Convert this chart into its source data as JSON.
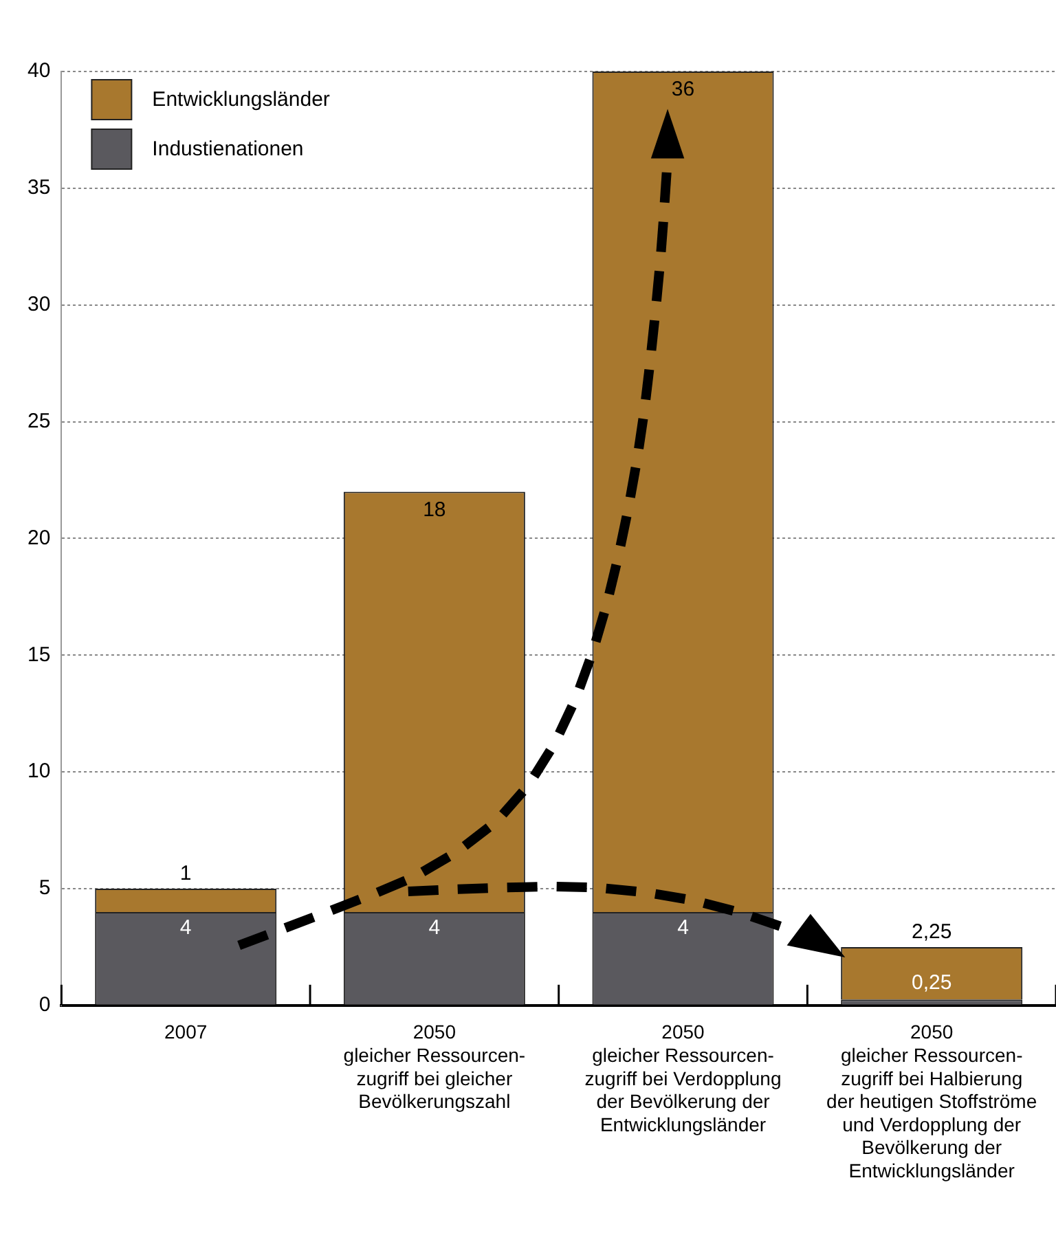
{
  "chart_data": {
    "type": "bar",
    "stacked": true,
    "categories": [
      "2007",
      "2050\ngleicher Ressourcen-\nzugriff bei gleicher\nBevölkerungszahl",
      "2050\ngleicher Ressourcen-\nzugriff bei Verdopplung\nder Bevölkerung der\nEntwicklungsländer",
      "2050\ngleicher Ressourcen-\nzugriff bei Halbierung\nder heutigen Stoffströme\nund Verdopplung der\nBevölkerung der\nEntwicklungsländer"
    ],
    "series": [
      {
        "name": "Industienationen",
        "color": "#5a595e",
        "values": [
          4,
          4,
          4,
          0.25
        ],
        "value_labels": [
          "4",
          "4",
          "4",
          "0,25"
        ]
      },
      {
        "name": "Entwicklungsländer",
        "color": "#a8782e",
        "values": [
          1,
          18,
          36,
          2.25
        ],
        "value_labels": [
          "1",
          "18",
          "36",
          "2,25"
        ]
      }
    ],
    "ylim": [
      0,
      40
    ],
    "yticks": [
      0,
      5,
      10,
      15,
      20,
      25,
      30,
      35,
      40
    ],
    "grid": "y",
    "legend": "top left"
  }
}
